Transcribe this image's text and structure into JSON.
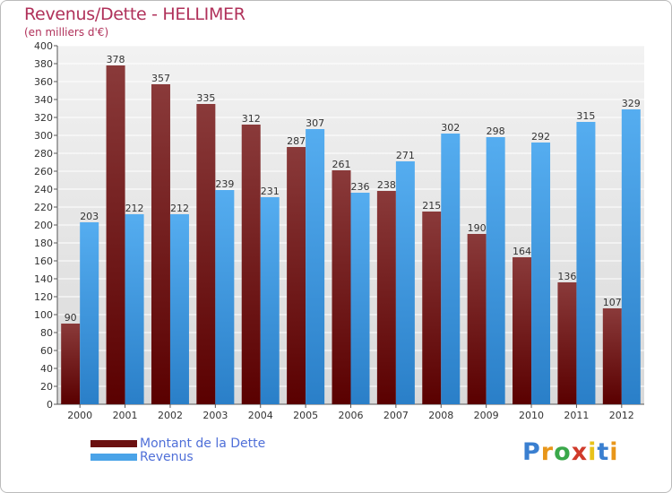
{
  "header": {
    "title": "Revenus/Dette - HELLIMER",
    "subtitle": "(en milliers d'€)"
  },
  "chart_data": {
    "type": "bar",
    "title": "Revenus/Dette - HELLIMER",
    "ylabel": "(en milliers d'€)",
    "xlabel": "",
    "ylim": [
      0,
      400
    ],
    "ytick_step": 20,
    "grid": true,
    "legend_position": "bottom-left",
    "categories": [
      "2000",
      "2001",
      "2002",
      "2003",
      "2004",
      "2005",
      "2006",
      "2007",
      "2008",
      "2009",
      "2010",
      "2011",
      "2012"
    ],
    "series": [
      {
        "name": "Montant de la Dette",
        "color": "#6b1010",
        "values": [
          90,
          378,
          357,
          335,
          312,
          287,
          261,
          238,
          215,
          190,
          164,
          136,
          107
        ]
      },
      {
        "name": "Revenus",
        "color": "#4aa3e8",
        "values": [
          203,
          212,
          212,
          239,
          231,
          307,
          236,
          271,
          302,
          298,
          292,
          315,
          329
        ]
      }
    ]
  },
  "legend": {
    "items": [
      {
        "label": "Montant de la Dette",
        "color": "#6b1010"
      },
      {
        "label": "Revenus",
        "color": "#4aa3e8"
      }
    ]
  },
  "brand": {
    "letters": [
      "P",
      "r",
      "o",
      "x",
      "i",
      "t",
      "i"
    ],
    "colors": [
      "#3a7fd0",
      "#e8961a",
      "#3aa84a",
      "#d03a2a",
      "#e8c21a",
      "#3a7fd0",
      "#e8961a"
    ]
  }
}
